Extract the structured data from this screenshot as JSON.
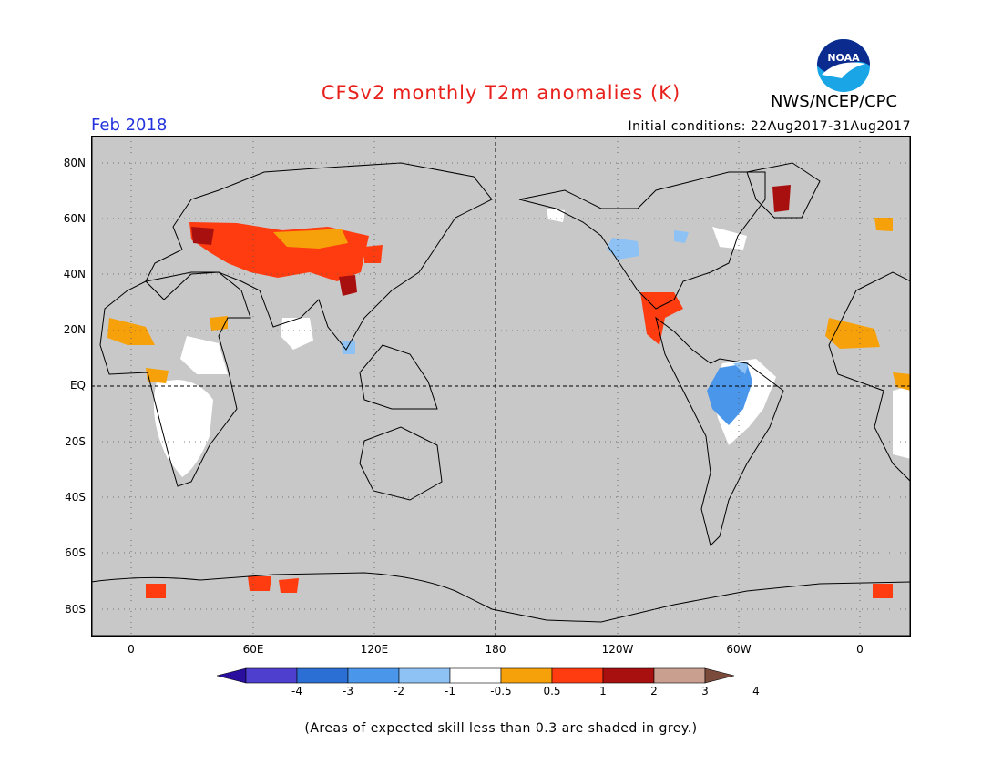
{
  "title": "CFSv2 monthly T2m anomalies (K)",
  "month": "Feb 2018",
  "initial_conditions": "Initial conditions: 22Aug2017-31Aug2017",
  "org": "NWS/NCEP/CPC",
  "logo_text": "NOAA",
  "lat_labels": [
    "80N",
    "60N",
    "40N",
    "20N",
    "EQ",
    "20S",
    "40S",
    "60S",
    "80S"
  ],
  "lon_labels": [
    "0",
    "60E",
    "120E",
    "180",
    "120W",
    "60W",
    "0"
  ],
  "colorbar": {
    "labels": [
      "-4",
      "-3",
      "-2",
      "-1",
      "-0.5",
      "0.5",
      "1",
      "2",
      "3",
      "4"
    ],
    "colors": [
      "#2a0f9f",
      "#4f3fcf",
      "#2b6fd4",
      "#4a96ea",
      "#8ec2f5",
      "#ffffff",
      "#f7a10a",
      "#ff3b10",
      "#a80f0f",
      "#c9a090",
      "#7a4a3a"
    ]
  },
  "colors": {
    "title": "#e8201c",
    "month": "#2233dd",
    "ocean_grey": "#c8c8c8",
    "coast": "#000000"
  },
  "footnote": "(Areas of expected skill less than 0.3 are shaded in grey.)"
}
